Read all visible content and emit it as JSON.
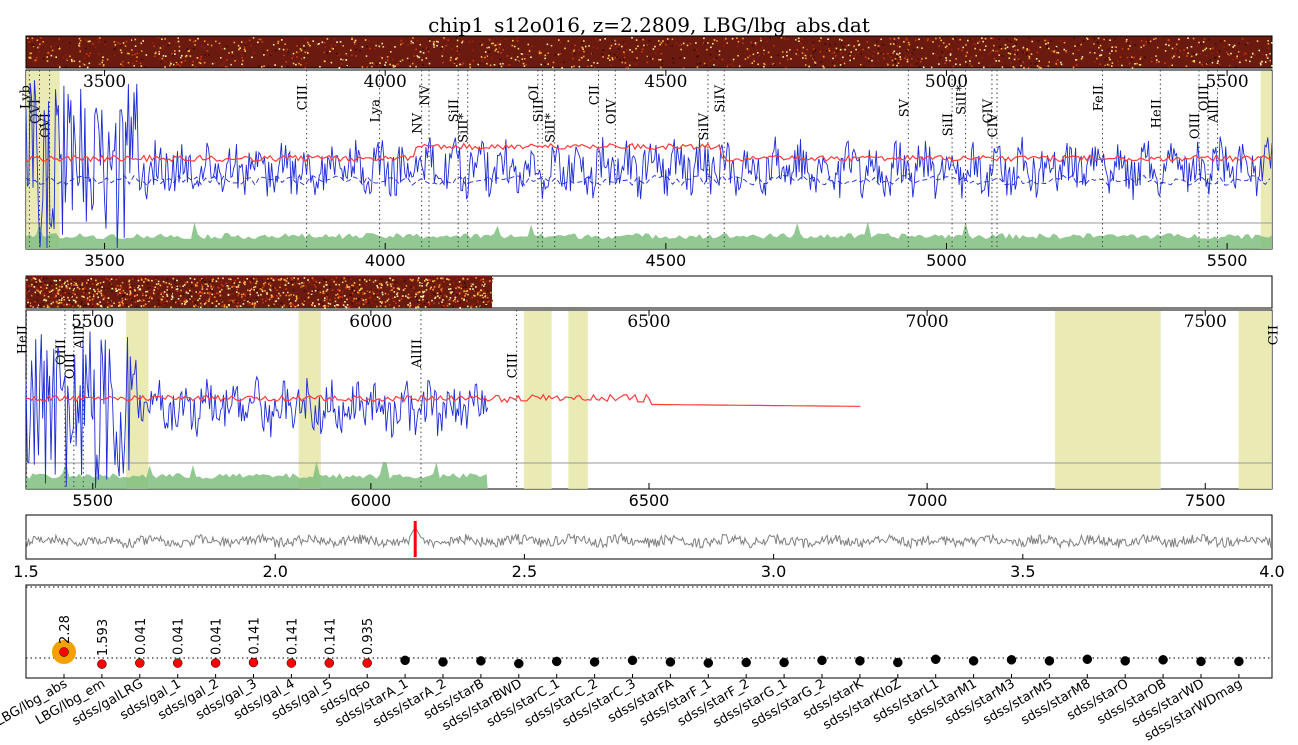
{
  "title": "chip1_s12o016, z=2.2809, LBG/lbg_abs.dat",
  "colors": {
    "flux": "#1f2bd6",
    "template": "#ff3b3b",
    "error_fill": "#7fc07f",
    "mask_band": "#e6e6a8",
    "xcorr": "#808080",
    "z_marker": "#ff0000",
    "best_ring": "#f5a000",
    "best_dot": "#ff0000",
    "other_dot": "#000000"
  },
  "chart_data": [
    {
      "type": "line",
      "panel": "spectrum_upper",
      "xlim": [
        3360,
        5580
      ],
      "x_ticks": [
        3500,
        4000,
        4500,
        5000,
        5500
      ],
      "series": [
        {
          "kind": "flux",
          "style": "solid"
        },
        {
          "kind": "flux_smoothed",
          "style": "dashed"
        },
        {
          "kind": "template",
          "style": "solid"
        },
        {
          "kind": "error",
          "style": "filled"
        }
      ],
      "masked_ranges": [
        [
          3360,
          3420
        ],
        [
          5560,
          5580
        ]
      ],
      "lines": [
        {
          "label": "Lyb",
          "wave": 3366
        },
        {
          "label": "OVI",
          "wave": 3384
        },
        {
          "label": "OVI",
          "wave": 3402
        },
        {
          "label": "CIII",
          "wave": 3860
        },
        {
          "label": "Lya",
          "wave": 3990
        },
        {
          "label": "NV",
          "wave": 4065
        },
        {
          "label": "NV",
          "wave": 4078
        },
        {
          "label": "SiII",
          "wave": 4130
        },
        {
          "label": "SiII*",
          "wave": 4147
        },
        {
          "label": "OI",
          "wave": 4272
        },
        {
          "label": "SiII",
          "wave": 4280
        },
        {
          "label": "SiII*",
          "wave": 4302
        },
        {
          "label": "CII",
          "wave": 4380
        },
        {
          "label": "OIV",
          "wave": 4410
        },
        {
          "label": "SiIV",
          "wave": 4575
        },
        {
          "label": "SiIV",
          "wave": 4604
        },
        {
          "label": "SV",
          "wave": 4932
        },
        {
          "label": "SiII",
          "wave": 5010
        },
        {
          "label": "SiII*",
          "wave": 5034
        },
        {
          "label": "CIV",
          "wave": 5081
        },
        {
          "label": "CIV",
          "wave": 5090
        },
        {
          "label": "FeII",
          "wave": 5278
        },
        {
          "label": "HeII",
          "wave": 5381
        },
        {
          "label": "OIII",
          "wave": 5450
        },
        {
          "label": "OIII",
          "wave": 5466
        },
        {
          "label": "AlII",
          "wave": 5483
        }
      ]
    },
    {
      "type": "line",
      "panel": "spectrum_lower",
      "xlim": [
        5380,
        7620
      ],
      "x_ticks": [
        5500,
        6000,
        6500,
        7000,
        7500
      ],
      "data_end": 6210,
      "template_end": 6880,
      "masked_ranges": [
        [
          5560,
          5600
        ],
        [
          5870,
          5910
        ],
        [
          6275,
          6325
        ],
        [
          6355,
          6390
        ],
        [
          7230,
          7420
        ],
        [
          7560,
          7620
        ]
      ],
      "lines": [
        {
          "label": "HeII",
          "wave": 5381
        },
        {
          "label": "OIII",
          "wave": 5450
        },
        {
          "label": "OIII",
          "wave": 5466
        },
        {
          "label": "AlII",
          "wave": 5483
        },
        {
          "label": "AlIII",
          "wave": 6090
        },
        {
          "label": "CIII",
          "wave": 6262
        },
        {
          "label": "CII",
          "wave": 7630
        }
      ]
    },
    {
      "type": "line",
      "panel": "cross_correlation",
      "xlim": [
        1.5,
        4.0
      ],
      "x_ticks": [
        "1.5",
        "2.0",
        "2.5",
        "3.0",
        "3.5",
        "4.0"
      ],
      "z_marker": 2.2809
    },
    {
      "type": "scatter",
      "panel": "template_fits",
      "categories": [
        "LBG/lbg_abs",
        "LBG/lbg_em",
        "sdss/galLRG",
        "sdss/gal_1",
        "sdss/gal_2",
        "sdss/gal_3",
        "sdss/gal_4",
        "sdss/gal_5",
        "sdss/qso",
        "sdss/starA_1",
        "sdss/starA_2",
        "sdss/starB",
        "sdss/starBWD",
        "sdss/starC_1",
        "sdss/starC_2",
        "sdss/starC_3",
        "sdss/starFA",
        "sdss/starF_1",
        "sdss/starF_2",
        "sdss/starG_1",
        "sdss/starG_2",
        "sdss/starK",
        "sdss/starKIoZ",
        "sdss/starL1",
        "sdss/starM1",
        "sdss/starM3",
        "sdss/starM5",
        "sdss/starM8",
        "sdss/starO",
        "sdss/starOB",
        "sdss/starWD",
        "sdss/starWDmag"
      ],
      "values": [
        0.0,
        -0.02,
        -0.04,
        -0.04,
        -0.04,
        -0.05,
        -0.04,
        -0.04,
        -0.04,
        -0.09,
        -0.06,
        -0.08,
        -0.03,
        -0.07,
        -0.06,
        -0.09,
        -0.06,
        -0.04,
        -0.05,
        -0.05,
        -0.09,
        -0.08,
        -0.05,
        -0.11,
        -0.08,
        -0.1,
        -0.08,
        -0.11,
        -0.08,
        -0.1,
        -0.07,
        -0.07
      ],
      "redshift_labels": [
        "2.28",
        "1.593",
        "0.041",
        "0.041",
        "0.041",
        "0.141",
        "0.141",
        "0.141",
        "0.935"
      ],
      "best_index": 0
    }
  ]
}
